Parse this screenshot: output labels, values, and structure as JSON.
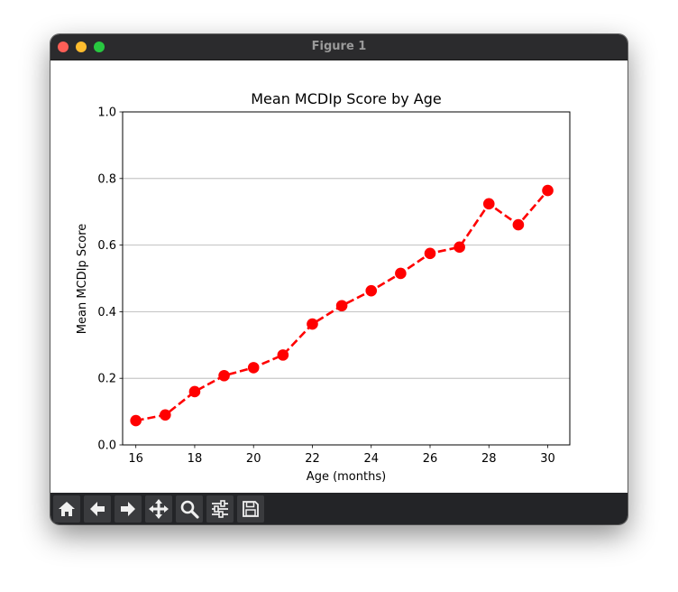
{
  "window": {
    "title": "Figure 1"
  },
  "toolbar": {
    "buttons": [
      {
        "name": "home-button",
        "icon": "home-icon"
      },
      {
        "name": "back-button",
        "icon": "arrow-left-icon"
      },
      {
        "name": "forward-button",
        "icon": "arrow-right-icon"
      },
      {
        "name": "pan-button",
        "icon": "move-icon"
      },
      {
        "name": "zoom-button",
        "icon": "magnifier-icon"
      },
      {
        "name": "configure-subplots-button",
        "icon": "sliders-icon"
      },
      {
        "name": "save-button",
        "icon": "floppy-disk-icon"
      }
    ]
  },
  "chart_data": {
    "type": "line",
    "title": "Mean MCDIp Score by Age",
    "xlabel": "Age (months)",
    "ylabel": "Mean MCDIp Score",
    "x": [
      16,
      17,
      18,
      19,
      20,
      21,
      22,
      23,
      24,
      25,
      26,
      27,
      28,
      29,
      30
    ],
    "series": [
      {
        "values": [
          0.073,
          0.09,
          0.16,
          0.208,
          0.232,
          0.27,
          0.363,
          0.418,
          0.463,
          0.515,
          0.575,
          0.594,
          0.724,
          0.661,
          0.764
        ],
        "color": "#ff0000",
        "line_style": "dashed",
        "marker": "circle"
      }
    ],
    "xlim": [
      15.55,
      30.75
    ],
    "ylim": [
      0,
      1.0
    ],
    "xticks": [
      "16",
      "18",
      "20",
      "22",
      "24",
      "26",
      "28",
      "30"
    ],
    "yticks": [
      "0.0",
      "0.2",
      "0.4",
      "0.6",
      "0.8",
      "1.0"
    ],
    "grid": "y-axis horizontal lines"
  }
}
